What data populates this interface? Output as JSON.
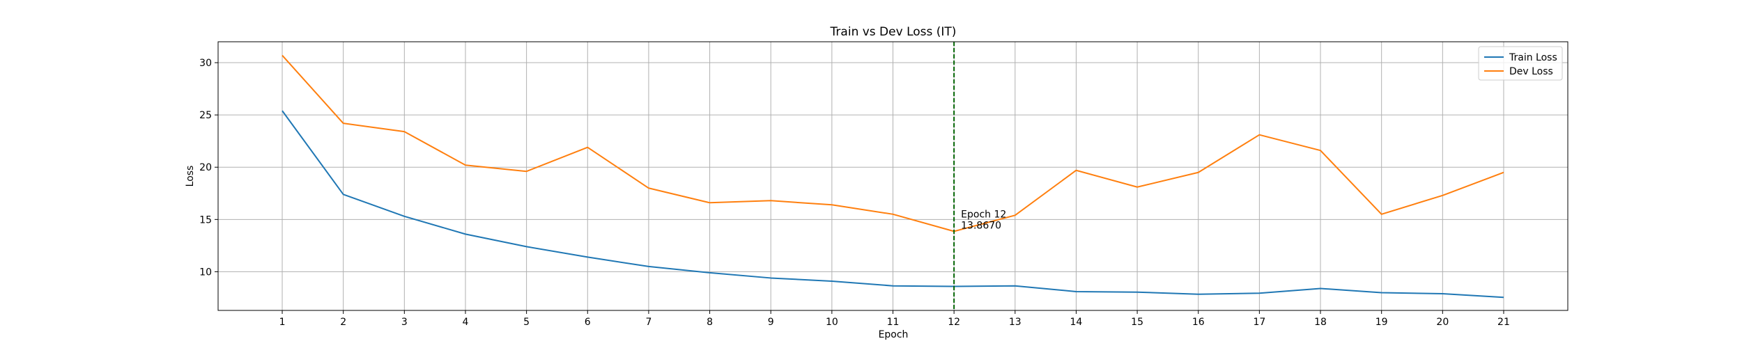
{
  "chart_data": {
    "type": "line",
    "title": "Train vs Dev Loss (IT)",
    "xlabel": "Epoch",
    "ylabel": "Loss",
    "x": [
      1,
      2,
      3,
      4,
      5,
      6,
      7,
      8,
      9,
      10,
      11,
      12,
      13,
      14,
      15,
      16,
      17,
      18,
      19,
      20,
      21
    ],
    "xlim": [
      -0.05,
      22.05
    ],
    "ylim": [
      6.3,
      32.0
    ],
    "yticks": [
      10,
      15,
      20,
      25,
      30
    ],
    "grid": true,
    "legend_position": "top-right",
    "series": [
      {
        "name": "Train Loss",
        "color": "#1f77b4",
        "values": [
          25.4,
          17.4,
          15.3,
          13.6,
          12.4,
          11.4,
          10.5,
          9.9,
          9.4,
          9.1,
          8.65,
          8.6,
          8.65,
          8.1,
          8.05,
          7.85,
          7.95,
          8.4,
          8.0,
          7.9,
          7.55
        ]
      },
      {
        "name": "Dev Loss",
        "color": "#ff7f0e",
        "values": [
          30.7,
          24.2,
          23.4,
          20.2,
          19.6,
          21.9,
          18.0,
          16.6,
          16.8,
          16.4,
          15.5,
          13.867,
          15.4,
          19.7,
          18.1,
          19.5,
          23.1,
          21.6,
          15.5,
          17.3,
          19.5
        ]
      }
    ],
    "vline": {
      "x": 12,
      "color": "#006400",
      "style": "dashed"
    },
    "annotation": {
      "x": 12,
      "y": 13.867,
      "line1": "Epoch 12",
      "line2": "13.8670"
    }
  }
}
